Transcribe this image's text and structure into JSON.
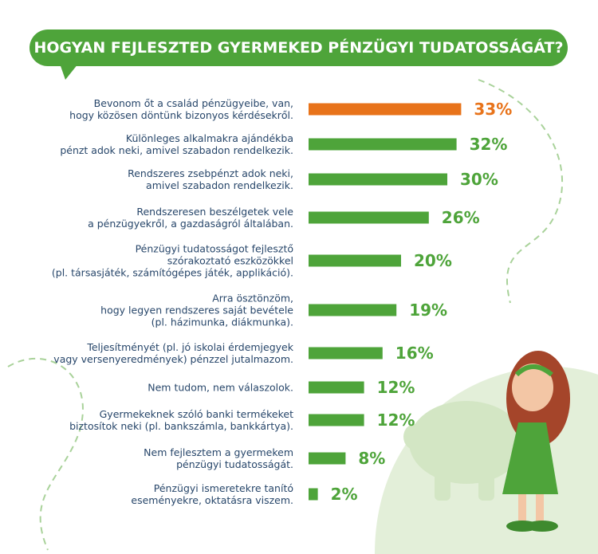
{
  "chart_data": {
    "type": "bar",
    "orientation": "horizontal",
    "title": "HOGYAN FEJLESZTED GYERMEKED PÉNZÜGYI TUDATOSSÁGÁT?",
    "categories": [
      "Bevonom őt a család pénzügyeibe, van,\nhogy közösen döntünk bizonyos kérdésekről.",
      "Különleges alkalmakra ajándékba\npénzt adok neki, amivel szabadon rendelkezik.",
      "Rendszeres zsebpénzt adok neki,\namivel szabadon rendelkezik.",
      "Rendszeresen beszélgetek vele\na pénzügyekről, a gazdaságról általában.",
      "Pénzügyi tudatosságot fejlesztő\nszórakoztató eszközökkel\n(pl. társasjáték, számítógépes játék, applikáció).",
      "Arra ösztönzöm,\nhogy legyen rendszeres saját bevétele\n(pl. házimunka, diákmunka).",
      "Teljesítményét (pl. jó iskolai érdemjegyek\nvagy versenyeredmények) pénzzel jutalmazom.",
      "Nem tudom, nem válaszolok.",
      "Gyermekeknek szóló banki termékeket\nbiztosítok neki (pl. bankszámla, bankkártya).",
      "Nem fejlesztem a gyermekem\npénzügyi tudatosságát.",
      "Pénzügyi ismeretekre tanító\neseményekre, oktatásra viszem."
    ],
    "values": [
      33,
      32,
      30,
      26,
      20,
      19,
      16,
      12,
      12,
      8,
      2
    ],
    "value_labels": [
      "33%",
      "32%",
      "30%",
      "26%",
      "20%",
      "19%",
      "16%",
      "12%",
      "12%",
      "8%",
      "2%"
    ],
    "colors": [
      "#e8731a",
      "#4ea43a",
      "#4ea43a",
      "#4ea43a",
      "#4ea43a",
      "#4ea43a",
      "#4ea43a",
      "#4ea43a",
      "#4ea43a",
      "#4ea43a",
      "#4ea43a"
    ]
  }
}
